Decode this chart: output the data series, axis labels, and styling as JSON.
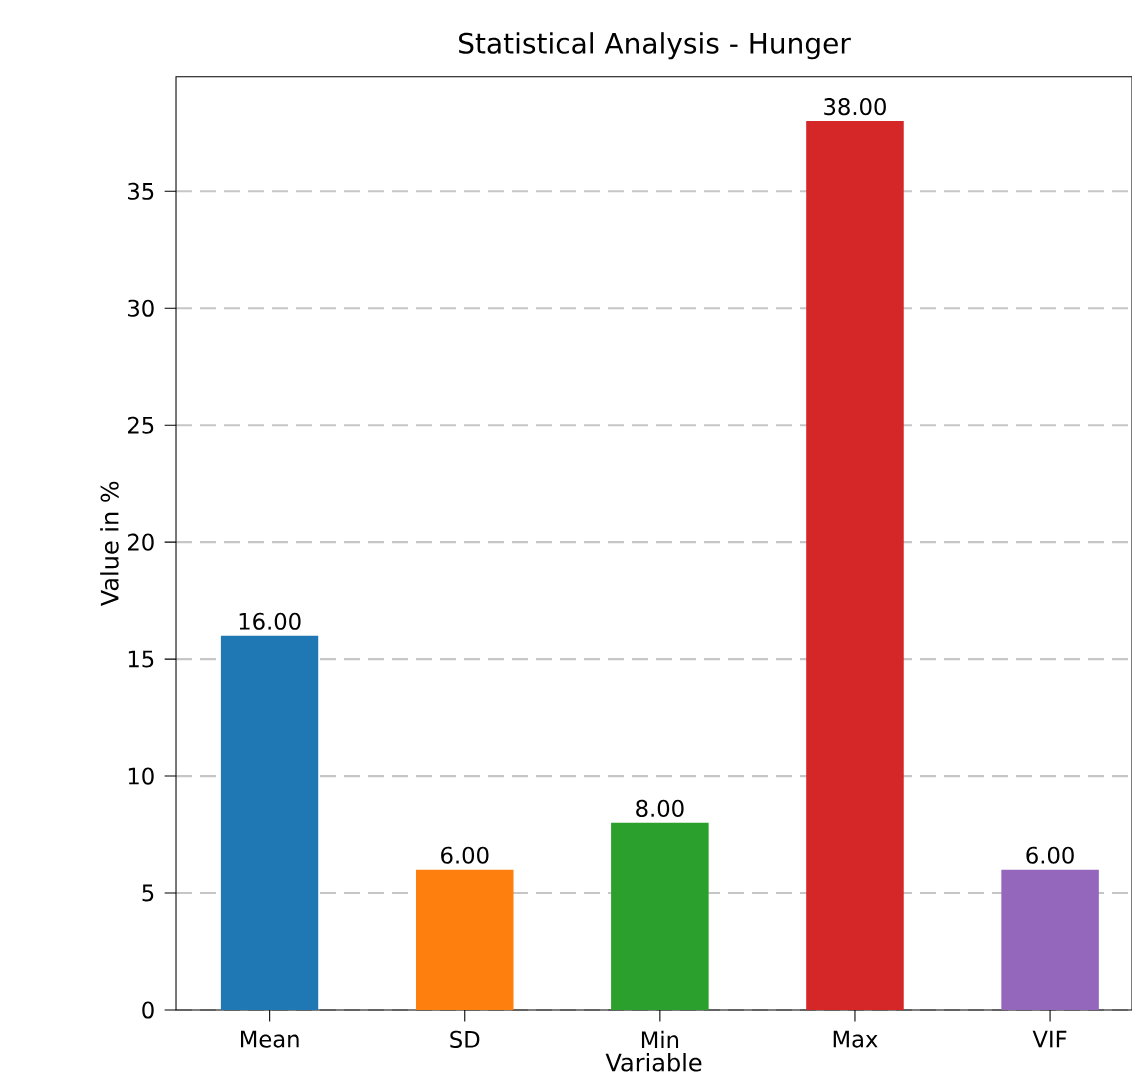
{
  "chart_data": {
    "type": "bar",
    "title": "Statistical Analysis - Hunger",
    "xlabel": "Variable",
    "ylabel": "Value in %",
    "categories": [
      "Mean",
      "SD",
      "Min",
      "Max",
      "VIF"
    ],
    "values": [
      16,
      6,
      8,
      38,
      6
    ],
    "colors": [
      "#1f77b4",
      "#ff7f0e",
      "#2ca02c",
      "#d62728",
      "#9467bd"
    ],
    "value_labels": [
      "16.00",
      "6.00",
      "8.00",
      "38.00",
      "6.00"
    ],
    "ylim": [
      0,
      39.9
    ],
    "yticks": [
      0,
      5,
      10,
      15,
      20,
      25,
      30,
      35
    ],
    "grid": "y",
    "line_style": "dashed"
  }
}
